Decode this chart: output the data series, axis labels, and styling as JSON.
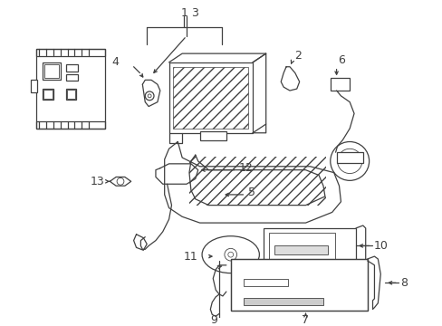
{
  "bg_color": "#ffffff",
  "line_color": "#404040",
  "figsize": [
    4.89,
    3.6
  ],
  "dpi": 100
}
